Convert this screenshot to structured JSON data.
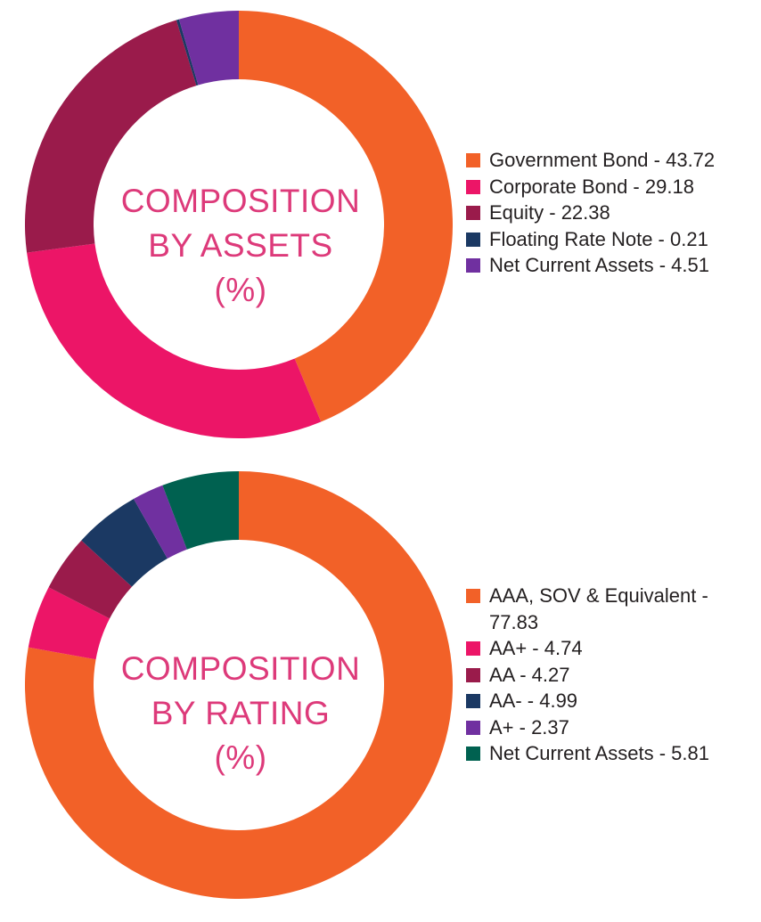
{
  "chart_data": [
    {
      "type": "pie",
      "title_lines": [
        "COMPOSITION",
        "BY ASSETS",
        "(%)"
      ],
      "unit": "%",
      "slices": [
        {
          "label": "Government Bond - 43.72",
          "name": "Government Bond",
          "value": 43.72,
          "color": "#f26128"
        },
        {
          "label": "Corporate Bond - 29.18",
          "name": "Corporate Bond",
          "value": 29.18,
          "color": "#ec1567"
        },
        {
          "label": "Equity - 22.38",
          "name": "Equity",
          "value": 22.38,
          "color": "#9a1b4b"
        },
        {
          "label": "Floating Rate Note - 0.21",
          "name": "Floating Rate Note",
          "value": 0.21,
          "color": "#1b3963"
        },
        {
          "label": "Net Current Assets - 4.51",
          "name": "Net Current Assets",
          "value": 4.51,
          "color": "#7030a0"
        }
      ],
      "legend_position": "right"
    },
    {
      "type": "pie",
      "title_lines": [
        "COMPOSITION",
        "BY RATING",
        "(%)"
      ],
      "unit": "%",
      "slices": [
        {
          "label": "AAA, SOV & Equivalent - 77.83",
          "name": "AAA, SOV & Equivalent",
          "value": 77.83,
          "color": "#f26128"
        },
        {
          "label": "AA+ - 4.74",
          "name": "AA+",
          "value": 4.74,
          "color": "#ec1567"
        },
        {
          "label": "AA - 4.27",
          "name": "AA",
          "value": 4.27,
          "color": "#9a1b4b"
        },
        {
          "label": "AA- - 4.99",
          "name": "AA-",
          "value": 4.99,
          "color": "#1b3963"
        },
        {
          "label": "A+ - 2.37",
          "name": "A+",
          "value": 2.37,
          "color": "#7030a0"
        },
        {
          "label": "Net Current Assets - 5.81",
          "name": "Net Current Assets",
          "value": 5.81,
          "color": "#006150"
        }
      ],
      "legend_position": "right"
    }
  ]
}
